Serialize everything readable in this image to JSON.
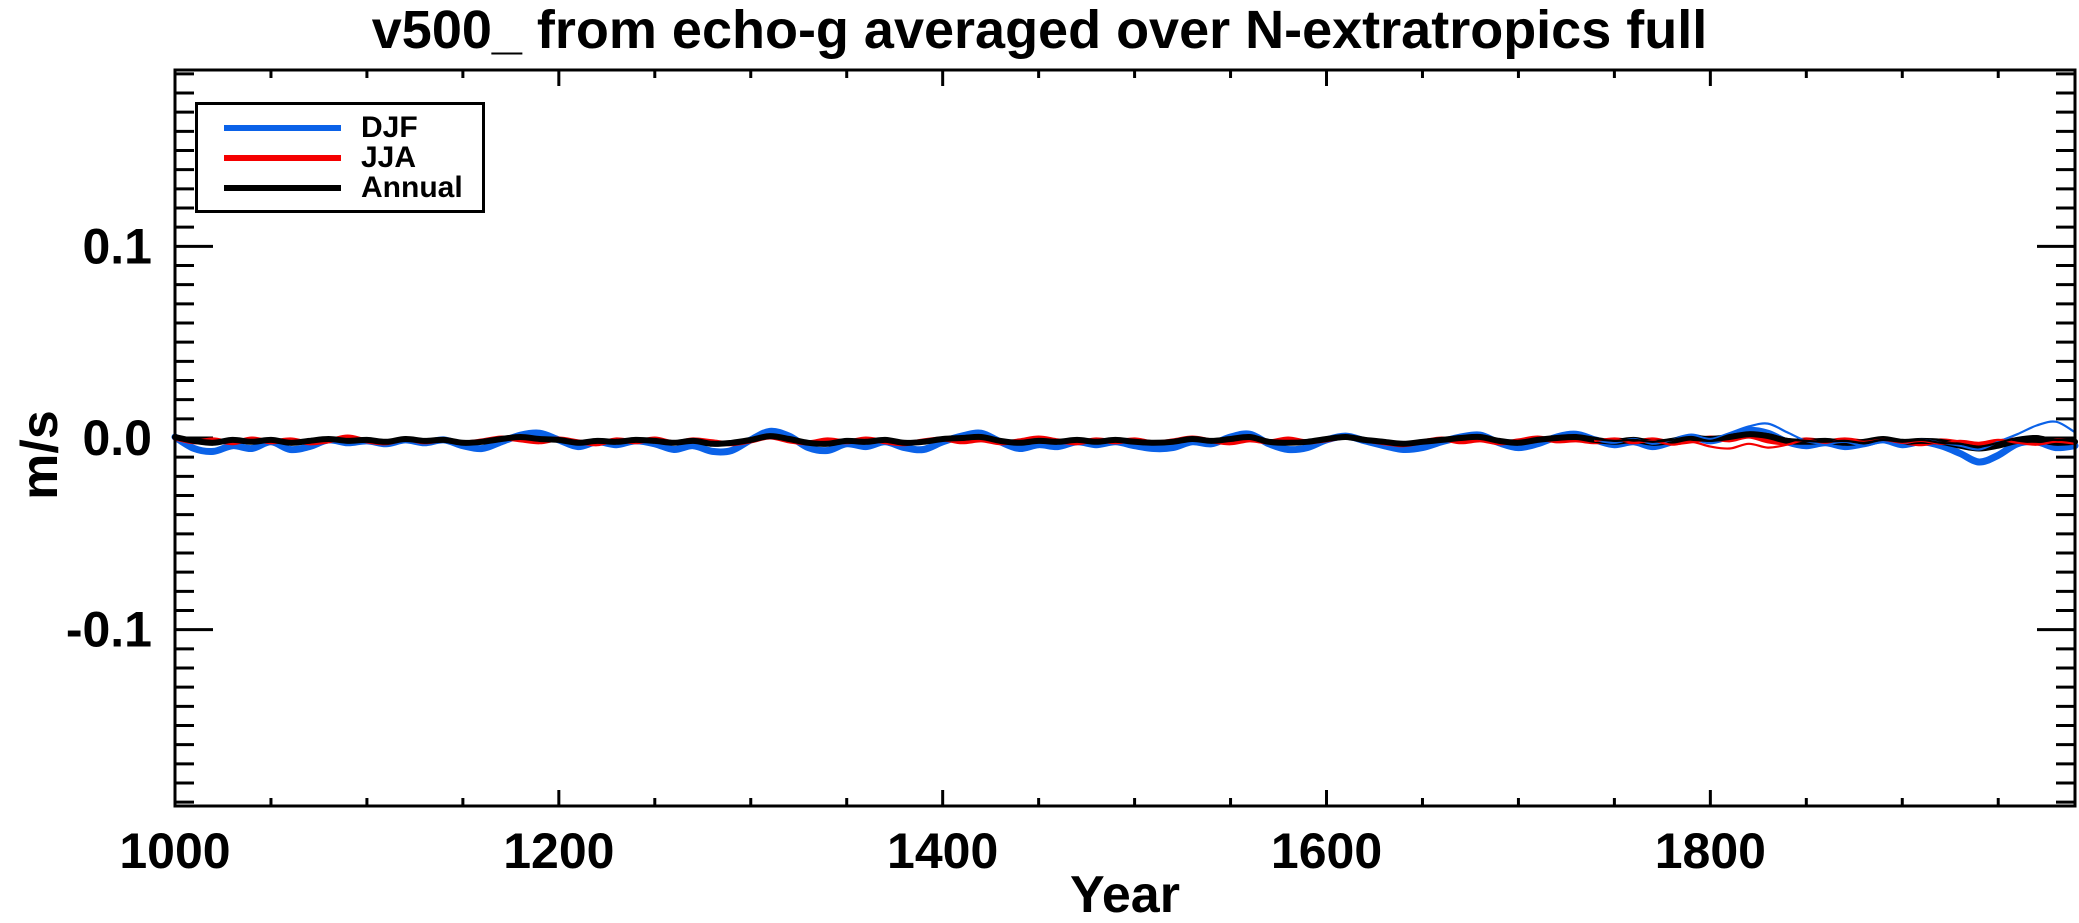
{
  "title": "v500_ from echo-g averaged over N-extratropics full",
  "axis_titles": {
    "x": "Year",
    "y": "m/s"
  },
  "legend": {
    "position": "top-left",
    "items": [
      {
        "label": "DJF",
        "color": "#0b62e8"
      },
      {
        "label": "JJA",
        "color": "#f50000"
      },
      {
        "label": "Annual",
        "color": "#000000"
      }
    ]
  },
  "chart_data": {
    "type": "line",
    "title": "v500_ from echo-g averaged over N-extratropics full",
    "xlabel": "Year",
    "ylabel": "m/s",
    "xlim": [
      1000,
      1990
    ],
    "ylim": [
      -0.192,
      0.192
    ],
    "grid": false,
    "legend_position": "top-left",
    "x_labeled_ticks": [
      {
        "value": 1000,
        "label": "1000"
      },
      {
        "value": 1200,
        "label": "1200"
      },
      {
        "value": 1400,
        "label": "1400"
      },
      {
        "value": 1600,
        "label": "1600"
      },
      {
        "value": 1800,
        "label": "1800"
      }
    ],
    "x_minor_step": 50,
    "y_labeled_ticks": [
      {
        "value": 0.1,
        "label": "0.1"
      },
      {
        "value": 0.0,
        "label": "0.0"
      },
      {
        "value": -0.1,
        "label": "-0.1"
      }
    ],
    "y_minor_step": 0.01,
    "series": [
      {
        "name": "DJF",
        "color": "#0b62e8",
        "stroke_width": 7,
        "x_start": 1000,
        "x_step": 10,
        "values": [
          0.0005,
          -0.0055,
          -0.007,
          -0.004,
          -0.0055,
          -0.002,
          -0.006,
          -0.0045,
          -0.001,
          -0.0025,
          -0.0015,
          -0.003,
          -0.001,
          -0.0025,
          -0.001,
          -0.004,
          -0.0055,
          -0.002,
          0.0015,
          0.0025,
          -0.001,
          -0.0045,
          -0.002,
          -0.0035,
          -0.0015,
          -0.003,
          -0.006,
          -0.004,
          -0.007,
          -0.0065,
          -0.001,
          0.0035,
          0.001,
          -0.005,
          -0.0065,
          -0.003,
          -0.0045,
          -0.002,
          -0.005,
          -0.006,
          -0.002,
          0.001,
          0.0025,
          -0.002,
          -0.0055,
          -0.0035,
          -0.0045,
          -0.002,
          -0.0035,
          -0.002,
          -0.004,
          -0.0055,
          -0.005,
          -0.002,
          -0.003,
          0.0005,
          0.002,
          -0.003,
          -0.006,
          -0.005,
          -0.001,
          0.001,
          -0.0015,
          -0.004,
          -0.006,
          -0.005,
          -0.002,
          0.0005,
          0.0015,
          -0.0025,
          -0.005,
          -0.003,
          0.0005,
          0.002,
          -0.001,
          -0.0035,
          -0.002,
          -0.0045,
          -0.002,
          0.0005,
          -0.0015,
          0.001,
          0.004,
          0.0025,
          -0.002,
          -0.004,
          -0.0025,
          -0.0045,
          -0.003,
          -0.001,
          -0.0035,
          -0.002,
          -0.004,
          -0.008,
          -0.0125,
          -0.009,
          -0.003,
          -0.002,
          -0.005,
          -0.004
        ]
      },
      {
        "name": "JJA",
        "color": "#f50000",
        "stroke_width": 5,
        "x_start": 1000,
        "x_step": 10,
        "values": [
          0.0,
          -0.002,
          -0.001,
          -0.0025,
          -0.0005,
          -0.002,
          -0.001,
          -0.0025,
          -0.0015,
          0.0005,
          -0.0015,
          -0.0025,
          -0.0005,
          -0.002,
          -0.001,
          -0.0025,
          -0.0015,
          0.0,
          -0.001,
          -0.002,
          -0.0005,
          -0.002,
          -0.003,
          -0.001,
          -0.002,
          -0.0005,
          -0.0025,
          -0.001,
          -0.002,
          -0.003,
          -0.0015,
          0.0005,
          -0.0015,
          -0.0025,
          -0.001,
          -0.002,
          -0.0005,
          -0.002,
          -0.003,
          -0.0015,
          -0.0005,
          -0.002,
          -0.001,
          -0.0025,
          -0.0015,
          0.0,
          -0.0015,
          -0.0025,
          -0.001,
          -0.002,
          -0.001,
          -0.0025,
          -0.0015,
          0.0,
          -0.0015,
          -0.0025,
          -0.001,
          -0.002,
          -0.0005,
          -0.002,
          -0.001,
          0.0005,
          -0.001,
          -0.0025,
          -0.0035,
          -0.002,
          -0.0005,
          -0.002,
          -0.001,
          -0.0025,
          -0.0015,
          0.0,
          -0.0015,
          -0.001,
          -0.002,
          -0.001,
          -0.002,
          -0.001,
          -0.0025,
          -0.0015,
          0.0,
          -0.001,
          0.001,
          -0.0015,
          -0.0025,
          -0.001,
          -0.002,
          -0.001,
          -0.002,
          -0.001,
          -0.002,
          -0.003,
          -0.0015,
          -0.0025,
          -0.0035,
          -0.002,
          -0.001,
          -0.002,
          -0.0015,
          -0.002
        ]
      },
      {
        "name": "Annual",
        "color": "#000000",
        "stroke_width": 6,
        "x_start": 1000,
        "x_step": 10,
        "values": [
          0.0005,
          -0.0015,
          -0.0025,
          -0.001,
          -0.002,
          -0.001,
          -0.0025,
          -0.0015,
          -0.0005,
          -0.0015,
          -0.001,
          -0.002,
          -0.0005,
          -0.0015,
          -0.001,
          -0.0025,
          -0.002,
          -0.0005,
          0.0005,
          -0.0005,
          -0.001,
          -0.0025,
          -0.0015,
          -0.002,
          -0.001,
          -0.0015,
          -0.0025,
          -0.0015,
          -0.003,
          -0.0025,
          -0.001,
          0.001,
          -0.0005,
          -0.0025,
          -0.003,
          -0.0015,
          -0.002,
          -0.001,
          -0.0025,
          -0.002,
          -0.0005,
          0.0,
          0.0005,
          -0.0015,
          -0.0025,
          -0.0015,
          -0.002,
          -0.001,
          -0.002,
          -0.001,
          -0.002,
          -0.0025,
          -0.002,
          -0.0005,
          -0.0015,
          -0.0005,
          0.0005,
          -0.002,
          -0.0025,
          -0.002,
          -0.0005,
          0.0005,
          -0.001,
          -0.002,
          -0.003,
          -0.002,
          -0.001,
          0.0,
          0.0005,
          -0.0015,
          -0.0025,
          -0.001,
          0.0,
          0.0005,
          -0.001,
          -0.002,
          -0.001,
          -0.0025,
          -0.0015,
          0.0,
          -0.0005,
          0.0005,
          0.002,
          0.001,
          -0.0015,
          -0.002,
          -0.0015,
          -0.0025,
          -0.002,
          -0.0005,
          -0.002,
          -0.0015,
          -0.002,
          -0.004,
          -0.0055,
          -0.004,
          -0.0015,
          -0.001,
          -0.0025,
          -0.002
        ]
      },
      {
        "name": "DJF-thin",
        "color": "#0b62e8",
        "stroke_width": 2.2,
        "x_start": 1740,
        "x_step": 10,
        "values": [
          -0.001,
          -0.0025,
          -0.0005,
          -0.003,
          -0.001,
          0.0015,
          -0.0005,
          0.0025,
          0.006,
          0.0075,
          0.003,
          -0.0015,
          -0.003,
          -0.002,
          -0.004,
          -0.002,
          -0.003,
          -0.001,
          -0.0025,
          -0.004,
          -0.006,
          -0.002,
          0.002,
          0.0065,
          0.0085,
          0.003
        ]
      },
      {
        "name": "JJA-thin",
        "color": "#f50000",
        "stroke_width": 2.2,
        "x_start": 1740,
        "x_step": 10,
        "values": [
          -0.0015,
          -0.0005,
          -0.0025,
          -0.0015,
          -0.0035,
          -0.002,
          -0.0045,
          -0.0055,
          -0.003,
          -0.005,
          -0.0035,
          -0.001,
          -0.0025,
          -0.0005,
          -0.002,
          -0.001,
          -0.0025,
          -0.0015,
          -0.003,
          -0.0015,
          -0.0025,
          -0.001,
          -0.0025,
          -0.0035,
          -0.002,
          -0.003
        ]
      },
      {
        "name": "Annual-thin",
        "color": "#000000",
        "stroke_width": 2.2,
        "x_start": 1740,
        "x_step": 10,
        "values": [
          -0.0005,
          -0.0015,
          -0.001,
          -0.002,
          -0.001,
          0.0005,
          -0.0015,
          0.0015,
          0.0025,
          0.002,
          -0.0005,
          -0.0015,
          -0.002,
          -0.0015,
          -0.0025,
          -0.001,
          -0.002,
          -0.001,
          -0.0025,
          -0.003,
          -0.0045,
          -0.0025,
          0.0,
          0.001,
          -0.001,
          -0.0005
        ]
      }
    ]
  }
}
